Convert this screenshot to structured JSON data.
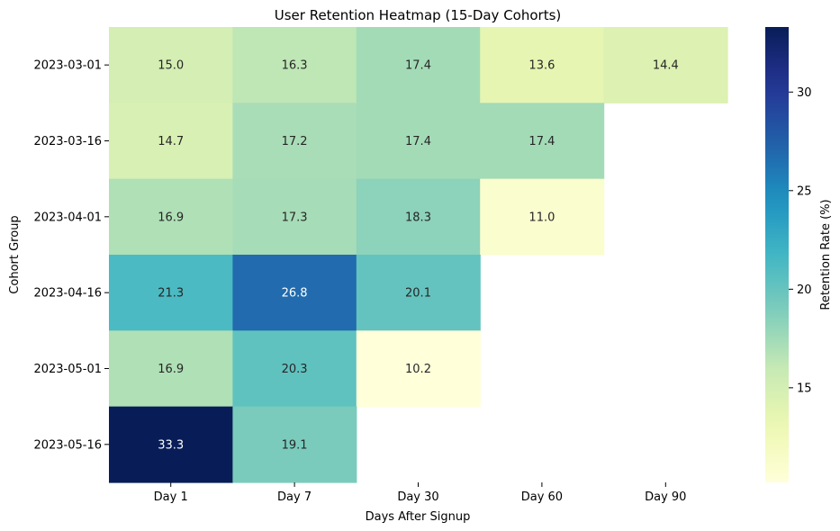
{
  "chart_data": {
    "type": "heatmap",
    "title": "User Retention Heatmap (15-Day Cohorts)",
    "xlabel": "Days After Signup",
    "ylabel": "Cohort Group",
    "x_categories": [
      "Day 1",
      "Day 7",
      "Day 30",
      "Day 60",
      "Day 90"
    ],
    "y_categories": [
      "2023-03-01",
      "2023-03-16",
      "2023-04-01",
      "2023-04-16",
      "2023-05-01",
      "2023-05-16"
    ],
    "values": [
      [
        15.0,
        16.3,
        17.4,
        13.6,
        14.4
      ],
      [
        14.7,
        17.2,
        17.4,
        17.4,
        null
      ],
      [
        16.9,
        17.3,
        18.3,
        11.0,
        null
      ],
      [
        21.3,
        26.8,
        20.1,
        null,
        null
      ],
      [
        16.9,
        20.3,
        10.2,
        null,
        null
      ],
      [
        33.3,
        19.1,
        null,
        null,
        null
      ]
    ],
    "colormap": "YlGnBu",
    "color_range": [
      10.2,
      33.3
    ],
    "colorbar": {
      "label": "Retention Rate (%)",
      "ticks": [
        15,
        20,
        25,
        30
      ],
      "tick_labels": [
        "15",
        "20",
        "25",
        "30"
      ]
    },
    "annotations": true,
    "annotation_format": "0.1f",
    "grid": false,
    "legend": "colorbar-right"
  }
}
